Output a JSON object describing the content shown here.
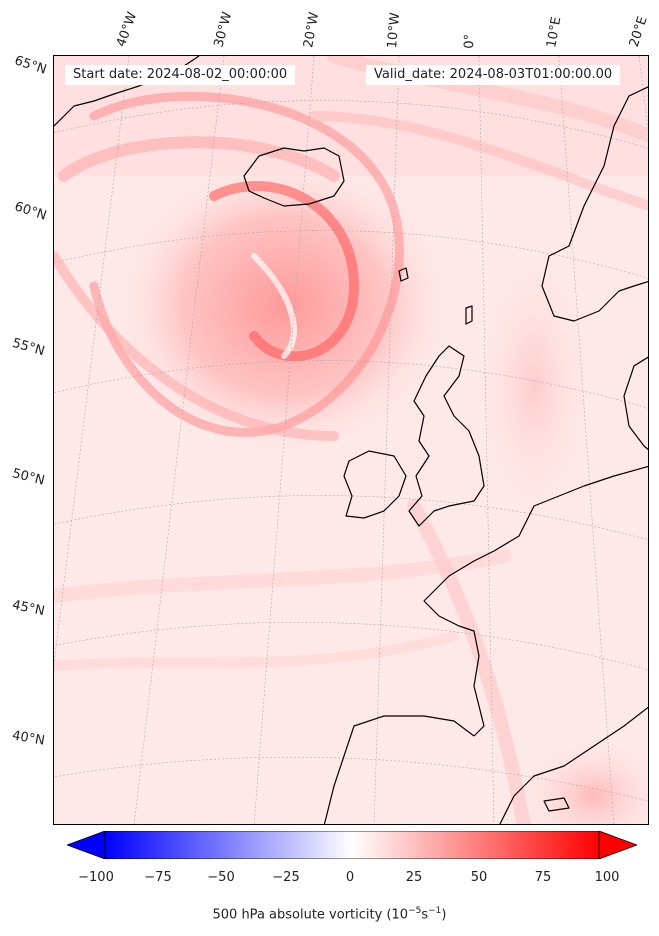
{
  "header": {
    "start_date": "Start date: 2024-08-02_00:00:00",
    "valid_date": "Valid_date: 2024-08-03T01:00:00.00"
  },
  "map": {
    "variable": "500 hPa absolute vorticity",
    "colormap": "bwr",
    "coastline_color": "#000000",
    "gridline_color": "#aaaaaa",
    "longitude_labels": [
      "40°W",
      "30°W",
      "20°W",
      "10°W",
      "0°",
      "10°E",
      "20°E"
    ],
    "latitude_labels": [
      "65°N",
      "60°N",
      "55°N",
      "50°N",
      "45°N",
      "40°N"
    ]
  },
  "colorbar": {
    "label_main": "500 hPa absolute vorticity (10",
    "label_exp1": "−5",
    "label_unit": "s",
    "label_exp2": "−1",
    "label_end": ")",
    "ticks": [
      "−100",
      "−75",
      "−50",
      "−25",
      "0",
      "25",
      "50",
      "75",
      "100"
    ],
    "range": [
      -100,
      100
    ],
    "low_color": "#0000ff",
    "mid_color": "#ffffff",
    "high_color": "#ff0000"
  }
}
